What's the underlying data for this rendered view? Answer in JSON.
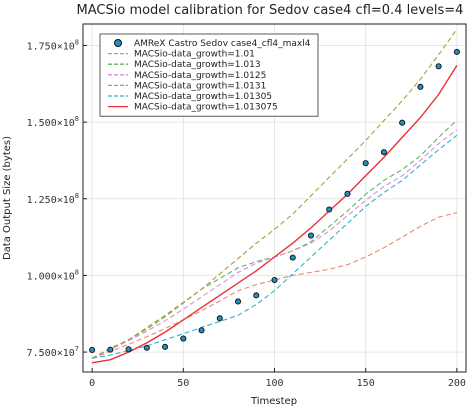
{
  "chart_data": {
    "type": "line",
    "title": "MACSio model calibration for Sedov case4 cfl=0.4 levels=4",
    "xlabel": "Timestep",
    "ylabel": "Data Output Size (bytes)",
    "xlim": [
      -5,
      205
    ],
    "ylim": [
      68500000,
      182000000
    ],
    "xticks": [
      0,
      50,
      100,
      150,
      200
    ],
    "xtick_labels": [
      "0",
      "50",
      "100",
      "150",
      "200"
    ],
    "yticks": [
      75000000,
      100000000,
      125000000,
      150000000,
      175000000
    ],
    "ytick_labels": [
      {
        "mantissa": "7.500×10",
        "exp": "7"
      },
      {
        "mantissa": "1.000×10",
        "exp": "8"
      },
      {
        "mantissa": "1.250×10",
        "exp": "8"
      },
      {
        "mantissa": "1.500×10",
        "exp": "8"
      },
      {
        "mantissa": "1.750×10",
        "exp": "8"
      }
    ],
    "grid": true,
    "legend_position": "top-left",
    "x": [
      0,
      10,
      20,
      30,
      40,
      50,
      60,
      70,
      80,
      90,
      100,
      110,
      120,
      130,
      140,
      150,
      160,
      170,
      180,
      190,
      200
    ],
    "series": [
      {
        "name": "AMReX Castro Sedov case4_cfl4_maxl4",
        "kind": "scatter",
        "color": "#1f8fbf",
        "values": [
          75700000,
          75800000,
          75900000,
          76400000,
          76700000,
          79400000,
          82100000,
          86000000,
          91500000,
          93500000,
          98500000,
          105800000,
          113000000,
          121500000,
          126600000,
          136600000,
          140200000,
          149800000,
          161500000,
          168200000,
          172900000
        ]
      },
      {
        "name": "MACSio-data_growth=1.01",
        "kind": "line",
        "dash": true,
        "color": "#e58a6f",
        "values": [
          73000000,
          75200000,
          77500000,
          80000000,
          82700000,
          85500000,
          88500000,
          91700000,
          95000000,
          97000000,
          98500000,
          100000000,
          101000000,
          102000000,
          103500000,
          106000000,
          109000000,
          112500000,
          116000000,
          119000000,
          120500000
        ]
      },
      {
        "name": "MACSio-data_growth=1.013",
        "kind": "line",
        "dash": true,
        "color": "#5cb85c",
        "values": [
          73000000,
          76000000,
          79000000,
          82500000,
          86500000,
          91000000,
          95500000,
          99000000,
          102500000,
          104500000,
          106000000,
          108000000,
          111000000,
          116000000,
          121000000,
          126500000,
          131000000,
          134500000,
          139000000,
          145000000,
          150700000
        ]
      },
      {
        "name": "MACSio-data_growth=1.0125",
        "kind": "line",
        "dash": true,
        "color": "#d98be0",
        "values": [
          73000000,
          75800000,
          78700000,
          81800000,
          85200000,
          89000000,
          93000000,
          97000000,
          101000000,
          104000000,
          106000000,
          108000000,
          110500000,
          114500000,
          119500000,
          124500000,
          129000000,
          132500000,
          137500000,
          143000000,
          147500000
        ]
      },
      {
        "name": "MACSio-data_growth=1.0131",
        "kind": "line",
        "dash": true,
        "color": "#b39a3a",
        "values": [
          73000000,
          76300000,
          79000000,
          83000000,
          87000000,
          91200000,
          95500000,
          100500000,
          105500000,
          110500000,
          115000000,
          120000000,
          126000000,
          132000000,
          138000000,
          144000000,
          150500000,
          157000000,
          164000000,
          172000000,
          180300000
        ]
      },
      {
        "name": "MACSio-data_growth=1.01305",
        "kind": "line",
        "dash": true,
        "color": "#2fb4c7",
        "values": [
          73000000,
          74000000,
          75500000,
          77000000,
          79000000,
          81000000,
          83000000,
          85000000,
          87000000,
          90500000,
          95000000,
          100500000,
          106000000,
          111500000,
          117000000,
          122500000,
          127000000,
          131000000,
          136000000,
          141000000,
          145700000
        ]
      },
      {
        "name": "MACSio-data_growth=1.013075",
        "kind": "line",
        "dash": false,
        "color": "#e8323a",
        "values": [
          71500000,
          72500000,
          75000000,
          78000000,
          81500000,
          85500000,
          89500000,
          93500000,
          97500000,
          101500000,
          106000000,
          110500000,
          115500000,
          121000000,
          126500000,
          132500000,
          138500000,
          145000000,
          151500000,
          159000000,
          168500000
        ]
      }
    ]
  }
}
